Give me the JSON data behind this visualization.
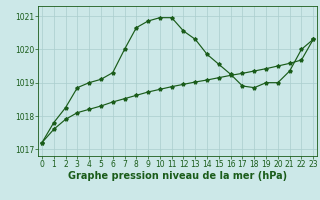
{
  "title": "Graphe pression niveau de la mer (hPa)",
  "x": [
    0,
    1,
    2,
    3,
    4,
    5,
    6,
    7,
    8,
    9,
    10,
    11,
    12,
    13,
    14,
    15,
    16,
    17,
    18,
    19,
    20,
    21,
    22,
    23
  ],
  "series1": [
    1017.2,
    1017.8,
    1018.25,
    1018.85,
    1019.0,
    1019.1,
    1019.3,
    1020.0,
    1020.65,
    1020.85,
    1020.95,
    1020.95,
    1020.55,
    1020.3,
    1019.85,
    1019.55,
    1019.25,
    1018.9,
    1018.85,
    1019.0,
    1019.0,
    1019.35,
    1020.0,
    1020.3
  ],
  "series2": [
    1017.2,
    1017.6,
    1017.9,
    1018.1,
    1018.2,
    1018.3,
    1018.42,
    1018.52,
    1018.62,
    1018.72,
    1018.8,
    1018.88,
    1018.95,
    1019.02,
    1019.08,
    1019.15,
    1019.22,
    1019.28,
    1019.35,
    1019.42,
    1019.5,
    1019.58,
    1019.68,
    1020.3
  ],
  "ylim": [
    1016.8,
    1021.3
  ],
  "yticks": [
    1017,
    1018,
    1019,
    1020,
    1021
  ],
  "xticks": [
    0,
    1,
    2,
    3,
    4,
    5,
    6,
    7,
    8,
    9,
    10,
    11,
    12,
    13,
    14,
    15,
    16,
    17,
    18,
    19,
    20,
    21,
    22,
    23
  ],
  "line_color": "#1a5c1a",
  "bg_color": "#cce8e8",
  "grid_color": "#aacece",
  "label_color": "#1a5c1a",
  "title_fontsize": 7,
  "tick_fontsize": 5.5
}
